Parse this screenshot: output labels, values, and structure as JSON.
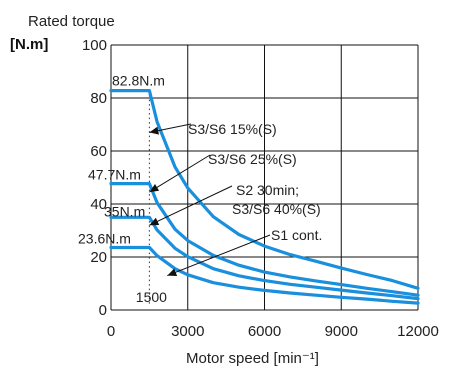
{
  "chart_data": {
    "type": "line",
    "title": "Rated torque",
    "ylabel": "[N.m]",
    "xlabel": "Motor speed [min⁻¹]",
    "xlim": [
      0,
      12000
    ],
    "ylim": [
      0,
      100
    ],
    "x_ticks": [
      0,
      3000,
      6000,
      9000,
      12000
    ],
    "y_ticks": [
      0,
      20,
      40,
      60,
      80,
      100
    ],
    "grid": true,
    "series": [
      {
        "name": "S3/S6 15%(S)",
        "base": 82.8,
        "x": [
          0,
          1500,
          1800,
          2500,
          3000,
          4000,
          5000,
          6000,
          7000,
          8000,
          9000,
          10000,
          11000,
          12000
        ],
        "y": [
          82.8,
          82.8,
          71,
          54,
          46,
          35.2,
          28.5,
          24.1,
          20.9,
          18.4,
          15.8,
          13.4,
          11.1,
          8.2
        ]
      },
      {
        "name": "S3/S6 25%(S)",
        "base": 47.7,
        "x": [
          0,
          1500,
          1800,
          2500,
          3000,
          4000,
          5000,
          6000,
          7000,
          8000,
          9000,
          10000,
          11000,
          12000
        ],
        "y": [
          47.7,
          47.7,
          40.5,
          30.5,
          26.2,
          20.6,
          16.9,
          14.3,
          12.5,
          11,
          9.6,
          8.2,
          6.9,
          5.6
        ]
      },
      {
        "name": "S2 30min;",
        "base": 35,
        "x": [
          0,
          1500,
          1800,
          2500,
          3000,
          4000,
          5000,
          6000,
          7000,
          8000,
          9000,
          10000,
          11000,
          12000
        ],
        "y": [
          35,
          35,
          30.2,
          23.3,
          20.1,
          15.6,
          12.9,
          11.1,
          9.7,
          8.6,
          7.5,
          6.4,
          5.4,
          4.3
        ]
      },
      {
        "name": "S1 cont.",
        "base": 23.6,
        "x": [
          0,
          1500,
          1800,
          2500,
          3000,
          4000,
          5000,
          6000,
          7000,
          8000,
          9000,
          10000,
          11000,
          12000
        ],
        "y": [
          23.6,
          23.6,
          20.5,
          15.6,
          13.3,
          10.3,
          8.6,
          7.4,
          6.4,
          5.6,
          4.8,
          4.1,
          3.3,
          2.6
        ]
      }
    ],
    "value_labels": [
      "82.8N.m",
      "47.7N.m",
      "35N.m",
      "23.6N.m"
    ],
    "base_speed_label": "1500",
    "base_speed": 1500,
    "line_color": "#1a8fde",
    "annotation_labels": [
      "S3/S6 15%(S)",
      "S3/S6 25%(S)",
      "S2 30min;",
      "S3/S6 40%(S)",
      "S1 cont."
    ],
    "annotations": [
      {
        "text": "S3/S6 15%(S)",
        "arrow_to": [
          1500,
          67
        ]
      },
      {
        "text": "S3/S6 25%(S)",
        "arrow_to": [
          1500,
          44.5
        ]
      },
      {
        "text": "S2 30min;",
        "arrow_to": [
          1500,
          32
        ]
      },
      {
        "text": "S3/S6 40%(S)",
        "arrow_to": null
      },
      {
        "text": "S1 cont.",
        "arrow_to": [
          2200,
          13
        ]
      }
    ]
  }
}
